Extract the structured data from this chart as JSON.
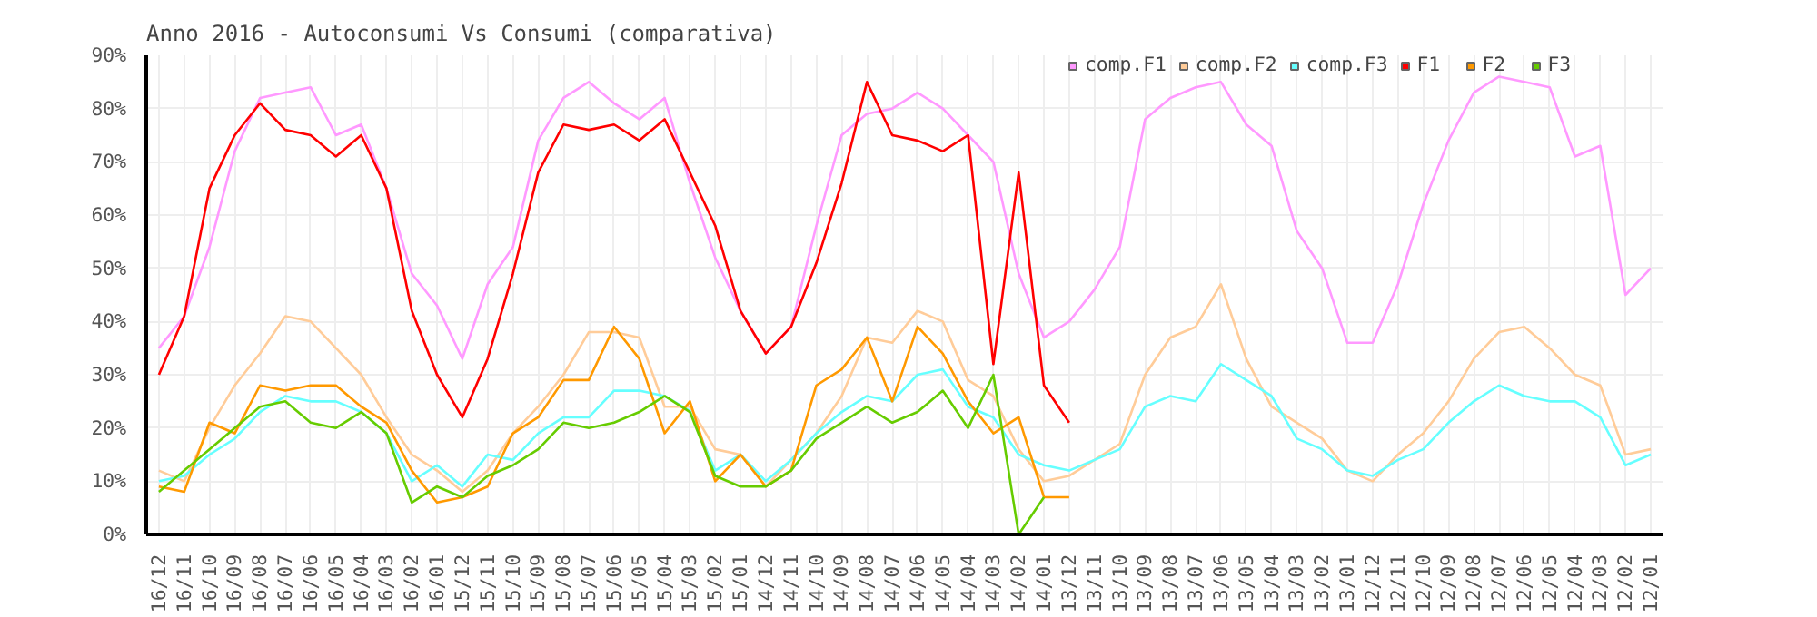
{
  "chart_data": {
    "type": "line",
    "title": "Anno 2016 - Autoconsumi Vs Consumi (comparativa)",
    "categories": [
      "16/12",
      "16/11",
      "16/10",
      "16/09",
      "16/08",
      "16/07",
      "16/06",
      "16/05",
      "16/04",
      "16/03",
      "16/02",
      "16/01",
      "15/12",
      "15/11",
      "15/10",
      "15/09",
      "15/08",
      "15/07",
      "15/06",
      "15/05",
      "15/04",
      "15/03",
      "15/02",
      "15/01",
      "14/12",
      "14/11",
      "14/10",
      "14/09",
      "14/08",
      "14/07",
      "14/06",
      "14/05",
      "14/04",
      "14/03",
      "14/02",
      "14/01",
      "13/12",
      "13/11",
      "13/10",
      "13/09",
      "13/08",
      "13/07",
      "13/06",
      "13/05",
      "13/04",
      "13/03",
      "13/02",
      "13/01",
      "12/12",
      "12/11",
      "12/10",
      "12/09",
      "12/08",
      "12/07",
      "12/06",
      "12/05",
      "12/04",
      "12/03",
      "12/02",
      "12/01"
    ],
    "series": [
      {
        "name": "comp.F1",
        "color": "#ff99ff",
        "values": [
          35,
          41,
          54,
          72,
          82,
          83,
          84,
          75,
          77,
          65,
          49,
          43,
          33,
          47,
          54,
          74,
          82,
          85,
          81,
          78,
          82,
          66,
          52,
          42,
          34,
          39,
          58,
          75,
          79,
          80,
          83,
          80,
          75,
          70,
          49,
          37,
          40,
          46,
          54,
          78,
          82,
          84,
          85,
          77,
          73,
          57,
          50,
          36,
          36,
          47,
          62,
          74,
          83,
          86,
          85,
          84,
          71,
          73,
          45,
          50
        ]
      },
      {
        "name": "comp.F2",
        "color": "#ffcc99",
        "values": [
          12,
          10,
          20,
          28,
          34,
          41,
          40,
          35,
          30,
          22,
          15,
          12,
          8,
          12,
          19,
          24,
          30,
          38,
          38,
          37,
          24,
          24,
          16,
          15,
          9,
          14,
          19,
          26,
          37,
          36,
          42,
          40,
          29,
          26,
          16,
          10,
          11,
          14,
          17,
          30,
          37,
          39,
          47,
          33,
          24,
          21,
          18,
          12,
          10,
          15,
          19,
          25,
          33,
          38,
          39,
          35,
          30,
          28,
          15,
          16
        ]
      },
      {
        "name": "comp.F3",
        "color": "#66ffff",
        "values": [
          10,
          11,
          15,
          18,
          23,
          26,
          25,
          25,
          23,
          19,
          10,
          13,
          9,
          15,
          14,
          19,
          22,
          22,
          27,
          27,
          26,
          23.2,
          12,
          15,
          10,
          14,
          19,
          23,
          26,
          25,
          30,
          31,
          24,
          22,
          15,
          13,
          12,
          14,
          16,
          24,
          26,
          25,
          32,
          29,
          26,
          18,
          16,
          12,
          11,
          14,
          16,
          21,
          25,
          28,
          26,
          25,
          25,
          22,
          13,
          15
        ]
      },
      {
        "name": "F1",
        "color": "#ff0000",
        "values": [
          30,
          41,
          65,
          75,
          81,
          76,
          75,
          71,
          75,
          65,
          42,
          30,
          22,
          33,
          49,
          68,
          77,
          76,
          77,
          74,
          78,
          68,
          58,
          42,
          34,
          39,
          51,
          66,
          85,
          75,
          74,
          72,
          75,
          32,
          68,
          28,
          21,
          null,
          null,
          null,
          null,
          null,
          null,
          null,
          null,
          null,
          null,
          null,
          null,
          null,
          null,
          null,
          null,
          null,
          null,
          null,
          null,
          null,
          null,
          null
        ]
      },
      {
        "name": "F2",
        "color": "#ff9900",
        "values": [
          9,
          8,
          21,
          19,
          28,
          27,
          28,
          28,
          24,
          21,
          12,
          6,
          7,
          9,
          19,
          22,
          29,
          29,
          39,
          33,
          19,
          25,
          10,
          15,
          9,
          12,
          28,
          31,
          37,
          25,
          39,
          34,
          25,
          19,
          22,
          7,
          7,
          null,
          null,
          null,
          null,
          null,
          null,
          null,
          null,
          null,
          null,
          null,
          null,
          null,
          null,
          null,
          null,
          null,
          null,
          null,
          null,
          null,
          null,
          null
        ]
      },
      {
        "name": "F3",
        "color": "#66cc00",
        "values": [
          8,
          12,
          16,
          20,
          24,
          25,
          21,
          20,
          23,
          19,
          6,
          9,
          7,
          11,
          13,
          16,
          21,
          20,
          21,
          23,
          26,
          23,
          11,
          9,
          9,
          12,
          18,
          21,
          24,
          21,
          23,
          27,
          20,
          30,
          0,
          7,
          null,
          null,
          null,
          null,
          null,
          null,
          null,
          null,
          null,
          null,
          null,
          null,
          null,
          null,
          null,
          null,
          null,
          null,
          null,
          null,
          null,
          null,
          null,
          null
        ]
      }
    ],
    "ylim": [
      0,
      90
    ],
    "yticks": [
      {
        "value": 0,
        "label": "0%"
      },
      {
        "value": 10,
        "label": "10%"
      },
      {
        "value": 20,
        "label": "20%"
      },
      {
        "value": 30,
        "label": "30%"
      },
      {
        "value": 40,
        "label": "40%"
      },
      {
        "value": 50,
        "label": "50%"
      },
      {
        "value": 60,
        "label": "60%"
      },
      {
        "value": 70,
        "label": "70%"
      },
      {
        "value": 80,
        "label": "80%"
      },
      {
        "value": 90,
        "label": "90%"
      }
    ],
    "grid": true,
    "legend": "top right",
    "marker": "none",
    "line_style": "solid"
  }
}
